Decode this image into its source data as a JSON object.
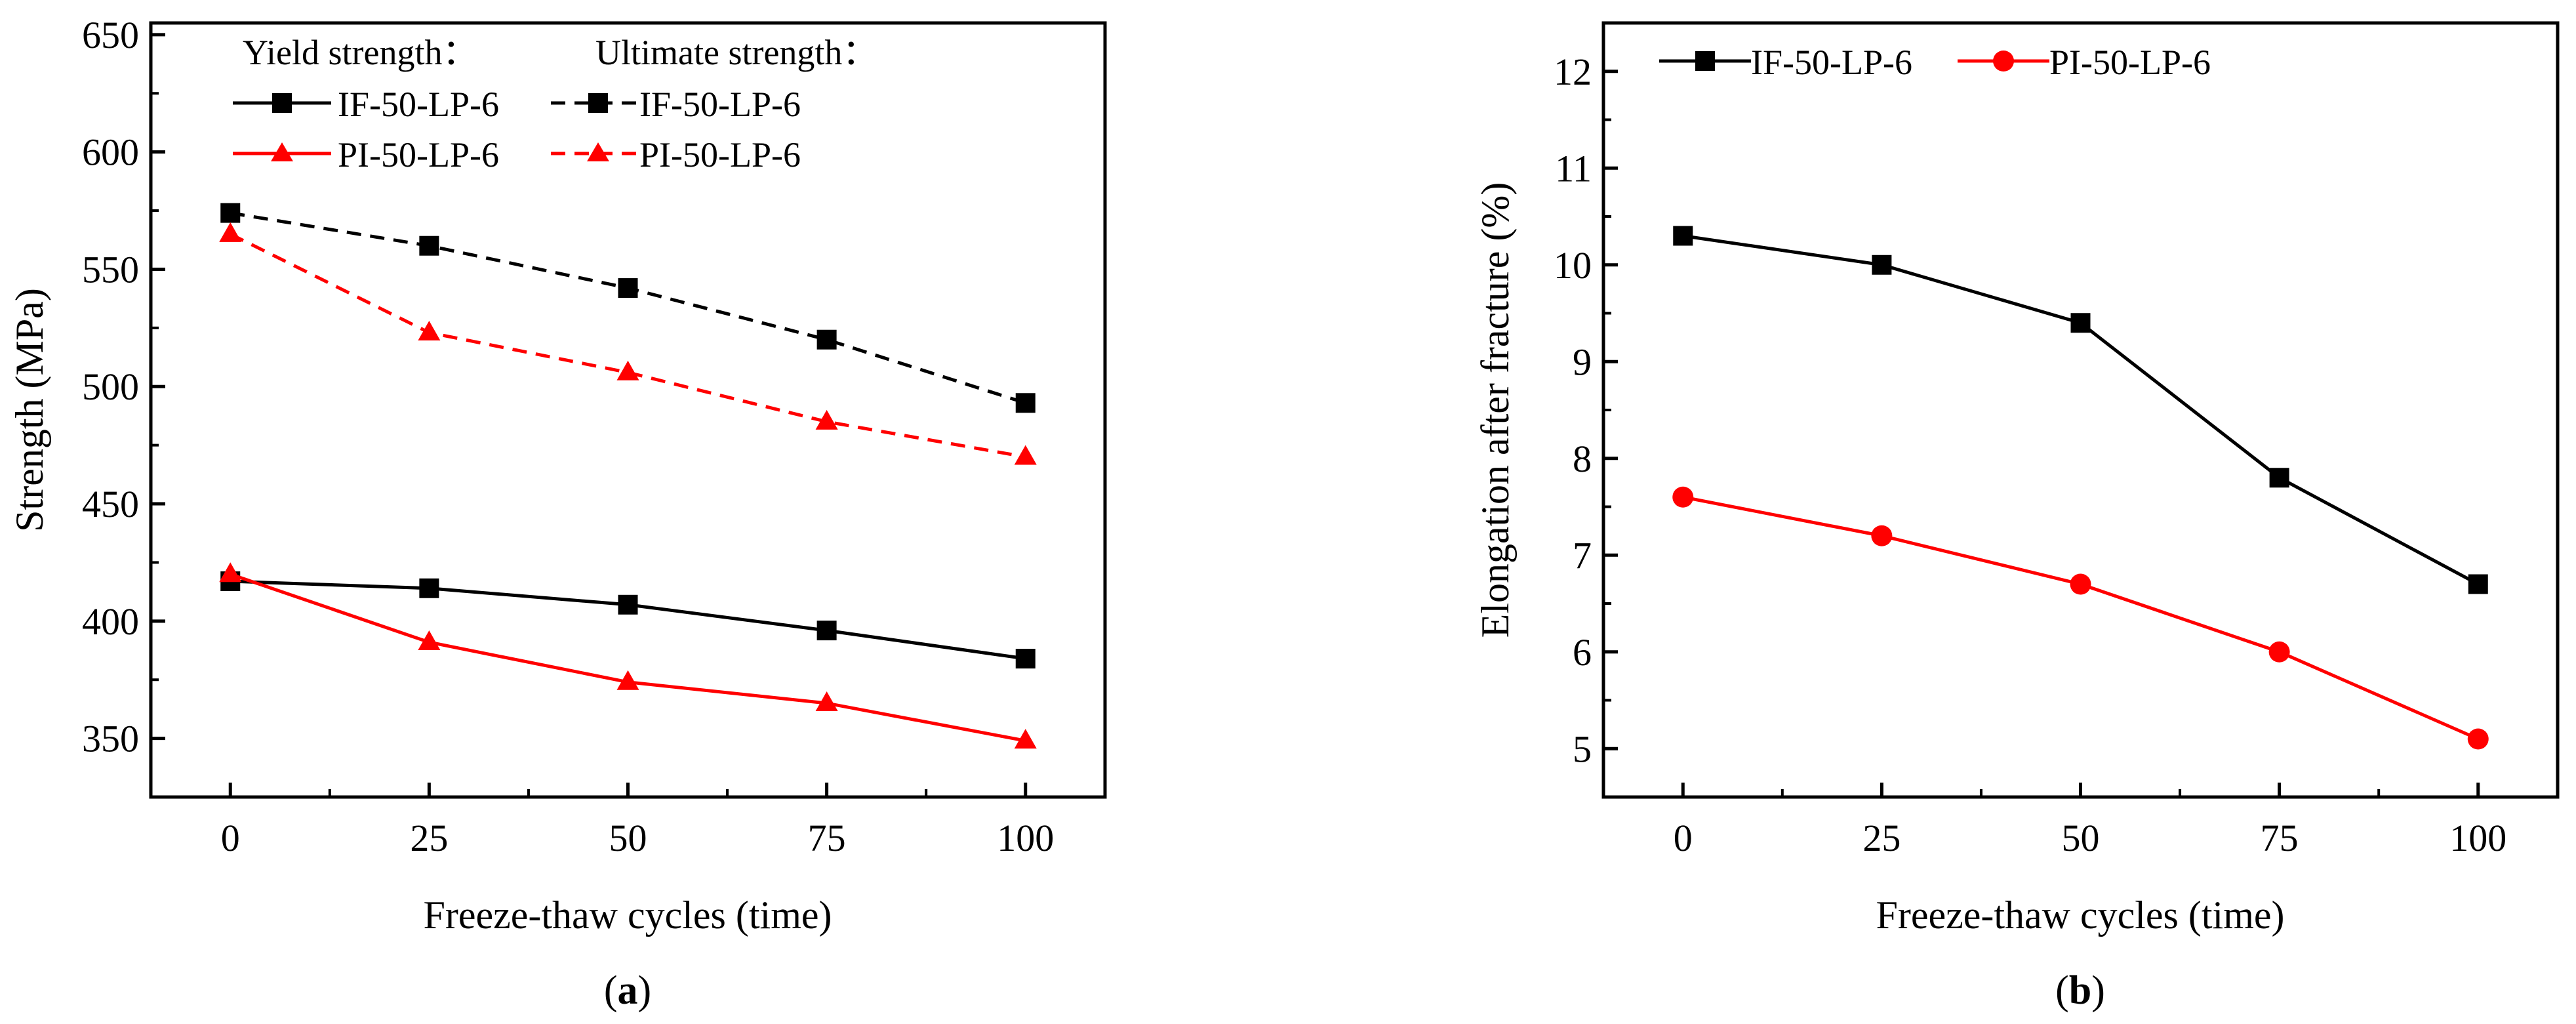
{
  "chart_data": [
    {
      "id": "a",
      "type": "line",
      "panel_label": "(a)",
      "panel_label_letter": "a",
      "xlabel": "Freeze-thaw cycles (time)",
      "ylabel": "Strength (MPa)",
      "x": [
        0,
        25,
        50,
        75,
        100
      ],
      "xticks": [
        0,
        25,
        50,
        75,
        100
      ],
      "xlim": [
        -10,
        110
      ],
      "yticks": [
        350,
        400,
        450,
        500,
        550,
        600,
        650
      ],
      "ylim": [
        325,
        655
      ],
      "grid": false,
      "legend_headers": [
        "Yield strength：",
        "Ultimate strength："
      ],
      "legend_position": "top",
      "series": [
        {
          "name": "IF-50-LP-6",
          "group": "Yield strength",
          "values": [
            417,
            414,
            407,
            396,
            384
          ],
          "color": "#000000",
          "marker": "square",
          "dash": "solid"
        },
        {
          "name": "PI-50-LP-6",
          "group": "Yield strength",
          "values": [
            420,
            391,
            374,
            365,
            349
          ],
          "color": "#ff0000",
          "marker": "triangle",
          "dash": "solid"
        },
        {
          "name": "IF-50-LP-6",
          "group": "Ultimate strength",
          "values": [
            574,
            560,
            542,
            520,
            493
          ],
          "color": "#000000",
          "marker": "square",
          "dash": "dashed"
        },
        {
          "name": "PI-50-LP-6",
          "group": "Ultimate strength",
          "values": [
            565,
            523,
            506,
            485,
            470
          ],
          "color": "#ff0000",
          "marker": "triangle",
          "dash": "dashed"
        }
      ]
    },
    {
      "id": "b",
      "type": "line",
      "panel_label": "(b)",
      "panel_label_letter": "b",
      "xlabel": "Freeze-thaw cycles (time)",
      "ylabel": "Elongation after fracture (%)",
      "x": [
        0,
        25,
        50,
        75,
        100
      ],
      "xticks": [
        0,
        25,
        50,
        75,
        100
      ],
      "xlim": [
        -10,
        110
      ],
      "yticks": [
        5,
        6,
        7,
        8,
        9,
        10,
        11,
        12
      ],
      "ylim": [
        4.5,
        12.5
      ],
      "grid": false,
      "legend_position": "top-left",
      "series": [
        {
          "name": "IF-50-LP-6",
          "values": [
            10.3,
            10.0,
            9.4,
            7.8,
            6.7
          ],
          "color": "#000000",
          "marker": "square",
          "dash": "solid"
        },
        {
          "name": "PI-50-LP-6",
          "values": [
            7.6,
            7.2,
            6.7,
            6.0,
            5.1
          ],
          "color": "#ff0000",
          "marker": "circle",
          "dash": "solid"
        }
      ]
    }
  ]
}
